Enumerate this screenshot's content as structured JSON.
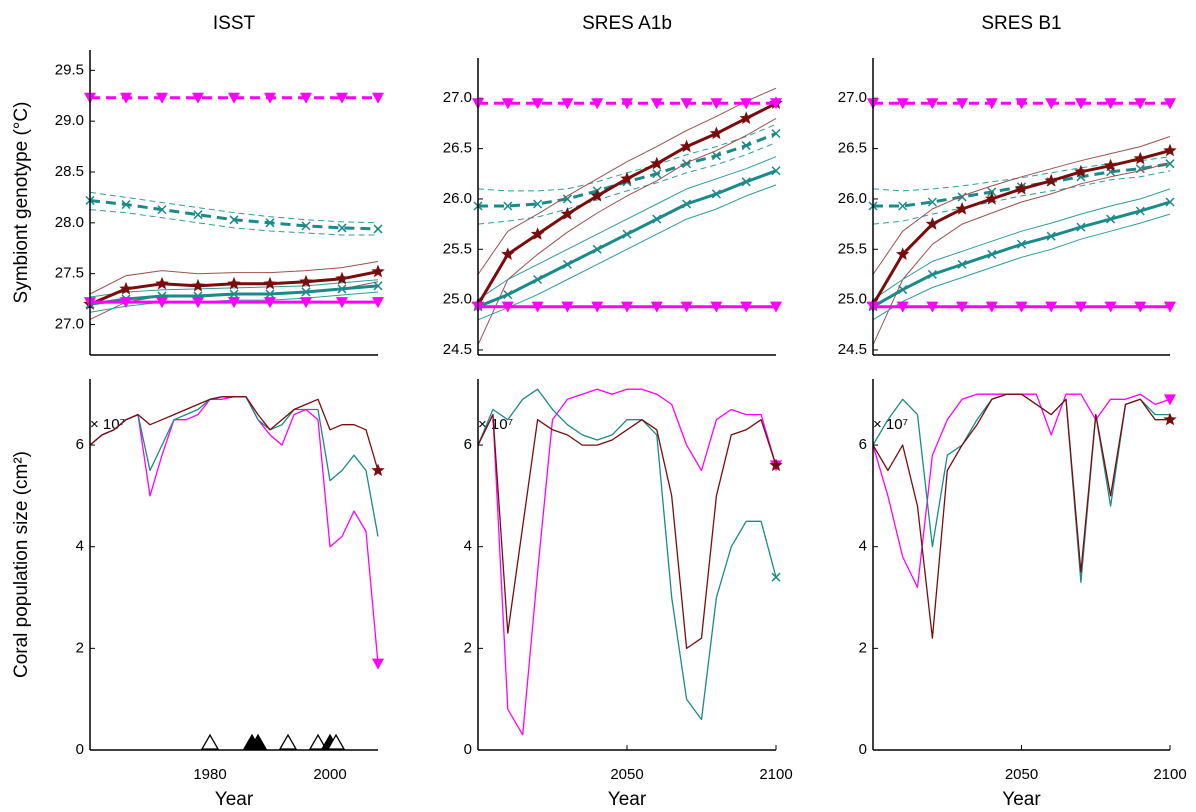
{
  "chart_data": [
    {
      "type": "line",
      "title": "ISST",
      "ylabel": "Symbiont genotype (°C)",
      "x": [
        1960,
        1966,
        1972,
        1978,
        1984,
        1990,
        1996,
        2002,
        2008
      ],
      "xlim": [
        1960,
        2008
      ],
      "ylim": [
        26.7,
        29.7
      ],
      "yticks": [
        {
          "value": 27,
          "label": "27.0"
        },
        27.5,
        {
          "value": 28,
          "label": "28.0"
        },
        28.5,
        {
          "value": 29,
          "label": "29.0"
        },
        29.5
      ],
      "series": [
        {
          "color": "#2a9d9d",
          "width": 1,
          "dash": true,
          "values": [
            28.3,
            28.25,
            28.2,
            28.15,
            28.1,
            28.06,
            28.03,
            28.01,
            28.0
          ]
        },
        {
          "color": "#2a9d9d",
          "width": 1,
          "dash": true,
          "values": [
            28.13,
            28.1,
            28.05,
            28.0,
            27.95,
            27.92,
            27.9,
            27.88,
            27.88
          ]
        },
        {
          "color": "#1a8a8a",
          "width": 3,
          "dash": true,
          "marker": "x",
          "values": [
            28.22,
            28.18,
            28.13,
            28.08,
            28.03,
            28.0,
            27.97,
            27.95,
            27.94
          ]
        },
        {
          "color": "#a05050",
          "width": 1,
          "values": [
            27.3,
            27.48,
            27.53,
            27.5,
            27.51,
            27.51,
            27.53,
            27.56,
            27.62
          ]
        },
        {
          "color": "#a05050",
          "width": 1,
          "values": [
            27.05,
            27.22,
            27.28,
            27.27,
            27.29,
            27.3,
            27.32,
            27.35,
            27.42
          ]
        },
        {
          "color": "#2a9d9d",
          "width": 1,
          "values": [
            27.27,
            27.32,
            27.34,
            27.35,
            27.36,
            27.37,
            27.38,
            27.41,
            27.44
          ]
        },
        {
          "color": "#2a9d9d",
          "width": 1,
          "values": [
            27.12,
            27.18,
            27.22,
            27.22,
            27.24,
            27.24,
            27.26,
            27.29,
            27.32
          ]
        },
        {
          "color": "#7a0c0c",
          "width": 3,
          "marker": "star",
          "values": [
            27.2,
            27.35,
            27.4,
            27.38,
            27.4,
            27.4,
            27.42,
            27.45,
            27.52
          ]
        },
        {
          "color": "#1a8a8a",
          "width": 3,
          "marker": "x",
          "values": [
            27.2,
            27.25,
            27.28,
            27.28,
            27.3,
            27.3,
            27.32,
            27.35,
            27.38
          ]
        },
        {
          "color": "#ff00ff",
          "width": 3,
          "dash": true,
          "marker": "triangle-down",
          "values": [
            29.23,
            29.23,
            29.23,
            29.23,
            29.23,
            29.23,
            29.23,
            29.23,
            29.23
          ]
        },
        {
          "color": "#ff00ff",
          "width": 3,
          "marker": "triangle-down",
          "values": [
            27.22,
            27.22,
            27.22,
            27.22,
            27.22,
            27.22,
            27.22,
            27.22,
            27.22
          ]
        }
      ]
    },
    {
      "type": "line",
      "title": "SRES A1b",
      "x": [
        2000,
        2010,
        2020,
        2030,
        2040,
        2050,
        2060,
        2070,
        2080,
        2090,
        2100
      ],
      "xlim": [
        2000,
        2100
      ],
      "ylim": [
        24.45,
        27.4
      ],
      "yticks": [
        24.5,
        {
          "value": 25,
          "label": "25.0"
        },
        25.5,
        {
          "value": 26,
          "label": "26.0"
        },
        26.5,
        {
          "value": 27,
          "label": "27.0"
        }
      ],
      "series": [
        {
          "color": "#2a9d9d",
          "width": 1,
          "dash": true,
          "values": [
            26.1,
            26.08,
            26.08,
            26.1,
            26.17,
            26.26,
            26.34,
            26.44,
            26.52,
            26.62,
            26.74
          ]
        },
        {
          "color": "#2a9d9d",
          "width": 1,
          "dash": true,
          "values": [
            25.75,
            25.78,
            25.82,
            25.9,
            25.99,
            26.08,
            26.16,
            26.26,
            26.34,
            26.44,
            26.56
          ]
        },
        {
          "color": "#1a8a8a",
          "width": 3,
          "dash": true,
          "marker": "x",
          "values": [
            25.93,
            25.93,
            25.95,
            26.0,
            26.08,
            26.17,
            26.25,
            26.35,
            26.43,
            26.53,
            26.65
          ]
        },
        {
          "color": "#a05050",
          "width": 1,
          "values": [
            25.25,
            25.68,
            25.85,
            26.03,
            26.2,
            26.37,
            26.52,
            26.68,
            26.82,
            26.97,
            27.1
          ]
        },
        {
          "color": "#a05050",
          "width": 1,
          "values": [
            24.55,
            25.2,
            25.45,
            25.67,
            25.86,
            26.03,
            26.18,
            26.36,
            26.48,
            26.63,
            26.8
          ]
        },
        {
          "color": "#2a9d9d",
          "width": 1,
          "values": [
            25.0,
            25.2,
            25.35,
            25.5,
            25.65,
            25.8,
            25.95,
            26.1,
            26.2,
            26.3,
            26.42
          ]
        },
        {
          "color": "#2a9d9d",
          "width": 1,
          "values": [
            24.8,
            24.92,
            25.05,
            25.2,
            25.35,
            25.5,
            25.65,
            25.8,
            25.9,
            26.03,
            26.14
          ]
        },
        {
          "color": "#7a0c0c",
          "width": 3,
          "marker": "star",
          "values": [
            24.95,
            25.45,
            25.65,
            25.85,
            26.03,
            26.2,
            26.35,
            26.52,
            26.65,
            26.8,
            26.95
          ]
        },
        {
          "color": "#1a8a8a",
          "width": 3,
          "marker": "x",
          "values": [
            24.93,
            25.05,
            25.2,
            25.35,
            25.5,
            25.65,
            25.8,
            25.95,
            26.05,
            26.17,
            26.28
          ]
        },
        {
          "color": "#ff00ff",
          "width": 3,
          "dash": true,
          "marker": "triangle-down",
          "values": [
            26.95,
            26.95,
            26.95,
            26.95,
            26.95,
            26.95,
            26.95,
            26.95,
            26.95,
            26.95,
            26.95
          ]
        },
        {
          "color": "#ff00ff",
          "width": 3,
          "marker": "triangle-down",
          "values": [
            24.93,
            24.93,
            24.93,
            24.93,
            24.93,
            24.93,
            24.93,
            24.93,
            24.93,
            24.93,
            24.93
          ]
        }
      ]
    },
    {
      "type": "line",
      "title": "SRES B1",
      "x": [
        2000,
        2010,
        2020,
        2030,
        2040,
        2050,
        2060,
        2070,
        2080,
        2090,
        2100
      ],
      "xlim": [
        2000,
        2100
      ],
      "ylim": [
        24.45,
        27.4
      ],
      "yticks": [
        24.5,
        {
          "value": 25,
          "label": "25.0"
        },
        25.5,
        {
          "value": 26,
          "label": "26.0"
        },
        26.5,
        {
          "value": 27,
          "label": "27.0"
        }
      ],
      "series": [
        {
          "color": "#2a9d9d",
          "width": 1,
          "dash": true,
          "values": [
            26.1,
            26.08,
            26.1,
            26.13,
            26.17,
            26.21,
            26.26,
            26.31,
            26.35,
            26.38,
            26.42
          ]
        },
        {
          "color": "#2a9d9d",
          "width": 1,
          "dash": true,
          "values": [
            25.75,
            25.78,
            25.85,
            25.91,
            25.97,
            26.03,
            26.08,
            26.13,
            26.19,
            26.22,
            26.28
          ]
        },
        {
          "color": "#1a8a8a",
          "width": 3,
          "dash": true,
          "marker": "x",
          "values": [
            25.93,
            25.93,
            25.97,
            26.02,
            26.07,
            26.12,
            26.17,
            26.22,
            26.27,
            26.3,
            26.35
          ]
        },
        {
          "color": "#a05050",
          "width": 1,
          "values": [
            25.25,
            25.68,
            25.9,
            26.03,
            26.13,
            26.22,
            26.3,
            26.38,
            26.45,
            26.52,
            26.62
          ]
        },
        {
          "color": "#a05050",
          "width": 1,
          "values": [
            24.55,
            25.2,
            25.55,
            25.75,
            25.86,
            25.97,
            26.05,
            26.15,
            26.22,
            26.28,
            26.36
          ]
        },
        {
          "color": "#2a9d9d",
          "width": 1,
          "values": [
            25.0,
            25.2,
            25.38,
            25.48,
            25.58,
            25.68,
            25.76,
            25.85,
            25.93,
            26.0,
            26.1
          ]
        },
        {
          "color": "#2a9d9d",
          "width": 1,
          "values": [
            24.8,
            24.98,
            25.12,
            25.22,
            25.32,
            25.42,
            25.5,
            25.6,
            25.68,
            25.76,
            25.85
          ]
        },
        {
          "color": "#7a0c0c",
          "width": 3,
          "marker": "star",
          "values": [
            24.95,
            25.45,
            25.75,
            25.9,
            26.0,
            26.1,
            26.18,
            26.27,
            26.33,
            26.4,
            26.48
          ]
        },
        {
          "color": "#1a8a8a",
          "width": 3,
          "marker": "x",
          "values": [
            24.93,
            25.1,
            25.25,
            25.35,
            25.45,
            25.55,
            25.63,
            25.72,
            25.8,
            25.88,
            25.97
          ]
        },
        {
          "color": "#ff00ff",
          "width": 3,
          "dash": true,
          "marker": "triangle-down",
          "values": [
            26.95,
            26.95,
            26.95,
            26.95,
            26.95,
            26.95,
            26.95,
            26.95,
            26.95,
            26.95,
            26.95
          ]
        },
        {
          "color": "#ff00ff",
          "width": 3,
          "marker": "triangle-down",
          "values": [
            24.93,
            24.93,
            24.93,
            24.93,
            24.93,
            24.93,
            24.93,
            24.93,
            24.93,
            24.93,
            24.93
          ]
        }
      ]
    },
    {
      "type": "line",
      "ylabel": "Coral population size (cm²)",
      "y_multiplier": "× 10⁷",
      "xlabel": "Year",
      "x": [
        1960,
        1962,
        1964,
        1966,
        1968,
        1970,
        1972,
        1974,
        1976,
        1978,
        1980,
        1982,
        1984,
        1986,
        1988,
        1990,
        1992,
        1994,
        1996,
        1998,
        2000,
        2002,
        2004,
        2006,
        2008
      ],
      "xlim": [
        1960,
        2008
      ],
      "xticks": [
        1980,
        2000
      ],
      "ylim": [
        0,
        7.3
      ],
      "yticks": [
        0,
        2,
        4,
        6
      ],
      "events": {
        "x": [
          1980,
          1987,
          1988,
          1993,
          1998,
          2000,
          2001
        ],
        "filled": [
          false,
          true,
          true,
          false,
          false,
          true,
          false
        ]
      },
      "series": [
        {
          "color": "#ff00ff",
          "width": 1.3,
          "marker": "triangle-down",
          "marker_at": "end",
          "values": [
            6.0,
            6.2,
            6.3,
            6.5,
            6.6,
            5.0,
            5.8,
            6.5,
            6.5,
            6.6,
            6.9,
            6.9,
            6.95,
            6.95,
            6.5,
            6.2,
            6.0,
            6.6,
            6.7,
            6.5,
            4.0,
            4.2,
            4.7,
            4.3,
            1.7
          ]
        },
        {
          "color": "#1a8a8a",
          "width": 1.3,
          "values": [
            6.0,
            6.2,
            6.3,
            6.5,
            6.6,
            5.5,
            6.0,
            6.5,
            6.6,
            6.7,
            6.9,
            6.95,
            6.95,
            6.95,
            6.5,
            6.3,
            6.4,
            6.7,
            6.7,
            6.7,
            5.3,
            5.5,
            5.8,
            5.5,
            4.2
          ]
        },
        {
          "color": "#7a0c0c",
          "width": 1.3,
          "marker": "star",
          "marker_at": "end",
          "values": [
            6.0,
            6.2,
            6.3,
            6.5,
            6.6,
            6.4,
            6.5,
            6.6,
            6.7,
            6.8,
            6.9,
            6.95,
            6.95,
            6.95,
            6.6,
            6.3,
            6.5,
            6.7,
            6.8,
            6.9,
            6.3,
            6.4,
            6.4,
            6.3,
            5.5
          ]
        }
      ]
    },
    {
      "type": "line",
      "y_multiplier": "× 10⁷",
      "xlabel": "Year",
      "x": [
        2000,
        2005,
        2010,
        2015,
        2020,
        2025,
        2030,
        2035,
        2040,
        2045,
        2050,
        2055,
        2060,
        2065,
        2070,
        2075,
        2080,
        2085,
        2090,
        2095,
        2100
      ],
      "xlim": [
        2000,
        2100
      ],
      "xticks": [
        2050,
        2100
      ],
      "ylim": [
        0,
        7.3
      ],
      "yticks": [
        0,
        2,
        4,
        6
      ],
      "series": [
        {
          "color": "#ff00ff",
          "width": 1.3,
          "marker": "triangle-down",
          "marker_at": "end",
          "values": [
            6.0,
            6.6,
            0.8,
            0.3,
            3.5,
            6.5,
            6.9,
            7.0,
            7.1,
            7.0,
            7.1,
            7.1,
            7.0,
            6.8,
            6.0,
            5.5,
            6.5,
            6.7,
            6.6,
            6.6,
            5.6
          ]
        },
        {
          "color": "#1a8a8a",
          "width": 1.3,
          "marker": "x",
          "marker_at": "end",
          "values": [
            6.0,
            6.7,
            6.5,
            6.9,
            7.1,
            6.7,
            6.4,
            6.2,
            6.1,
            6.2,
            6.5,
            6.5,
            6.2,
            3.0,
            1.0,
            0.6,
            3.0,
            4.0,
            4.5,
            4.5,
            3.4
          ]
        },
        {
          "color": "#7a0c0c",
          "width": 1.3,
          "marker": "star",
          "marker_at": "end",
          "values": [
            6.0,
            6.6,
            2.3,
            4.4,
            6.5,
            6.3,
            6.2,
            6.0,
            6.0,
            6.1,
            6.3,
            6.5,
            6.3,
            5.0,
            2.0,
            2.2,
            5.0,
            6.2,
            6.3,
            6.5,
            5.6
          ]
        }
      ]
    },
    {
      "type": "line",
      "y_multiplier": "× 10⁷",
      "xlabel": "Year",
      "x": [
        2000,
        2005,
        2010,
        2015,
        2020,
        2025,
        2030,
        2035,
        2040,
        2045,
        2050,
        2055,
        2060,
        2065,
        2070,
        2075,
        2080,
        2085,
        2090,
        2095,
        2100
      ],
      "xlim": [
        2000,
        2100
      ],
      "xticks": [
        2050,
        2100
      ],
      "ylim": [
        0,
        7.3
      ],
      "yticks": [
        0,
        2,
        4,
        6
      ],
      "series": [
        {
          "color": "#ff00ff",
          "width": 1.3,
          "marker": "triangle-down",
          "marker_at": "end",
          "values": [
            6.0,
            5.0,
            3.8,
            3.2,
            5.8,
            6.5,
            6.9,
            7.0,
            7.0,
            7.0,
            7.0,
            7.0,
            6.2,
            7.0,
            7.0,
            6.5,
            6.9,
            6.9,
            7.0,
            6.8,
            6.9
          ]
        },
        {
          "color": "#1a8a8a",
          "width": 1.3,
          "values": [
            6.0,
            6.5,
            6.9,
            6.6,
            4.0,
            5.8,
            6.0,
            6.5,
            6.9,
            7.0,
            7.0,
            6.8,
            6.6,
            6.9,
            3.3,
            6.6,
            4.8,
            6.8,
            6.9,
            6.6,
            6.6
          ]
        },
        {
          "color": "#7a0c0c",
          "width": 1.3,
          "marker": "star",
          "marker_at": "end",
          "values": [
            6.0,
            5.5,
            6.0,
            4.8,
            2.2,
            5.5,
            6.0,
            6.4,
            6.9,
            7.0,
            7.0,
            6.8,
            6.6,
            6.9,
            3.5,
            6.6,
            5.0,
            6.8,
            6.9,
            6.5,
            6.5
          ]
        }
      ]
    }
  ]
}
